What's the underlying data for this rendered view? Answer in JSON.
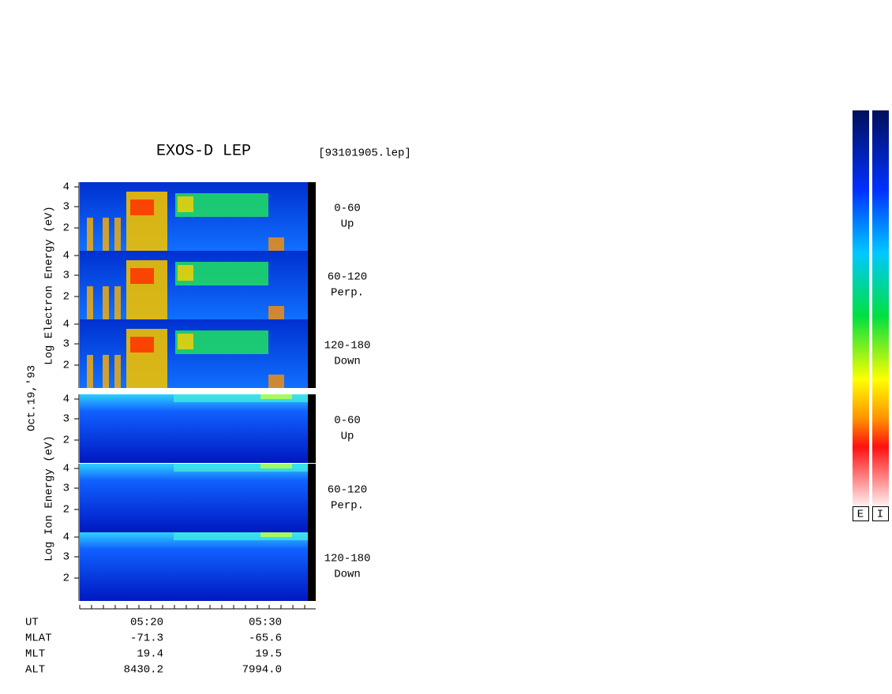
{
  "header": {
    "title": "EXOS-D LEP",
    "file": "[93101905.lep]"
  },
  "date": "Oct.19,'93",
  "axis_labels": {
    "electron": "Log  Electron  Energy  (eV)",
    "ion": "Log   Ion   Energy  (eV)"
  },
  "tick_labels": [
    "4",
    "3",
    "2"
  ],
  "panels": [
    {
      "angle": "0-60",
      "direction": "Up"
    },
    {
      "angle": "60-120",
      "direction": "Perp."
    },
    {
      "angle": "120-180",
      "direction": "Down"
    },
    {
      "angle": "0-60",
      "direction": "Up"
    },
    {
      "angle": "60-120",
      "direction": "Perp."
    },
    {
      "angle": "120-180",
      "direction": "Down"
    }
  ],
  "footer": {
    "rows": [
      [
        "UT",
        "05:20",
        "05:30"
      ],
      [
        "MLAT",
        "-71.3",
        "-65.6"
      ],
      [
        "MLT",
        "19.4",
        "19.5"
      ],
      [
        "ALT",
        "8430.2",
        "7994.0"
      ]
    ]
  },
  "colorbar": {
    "labels": [
      "E",
      "I"
    ]
  }
}
